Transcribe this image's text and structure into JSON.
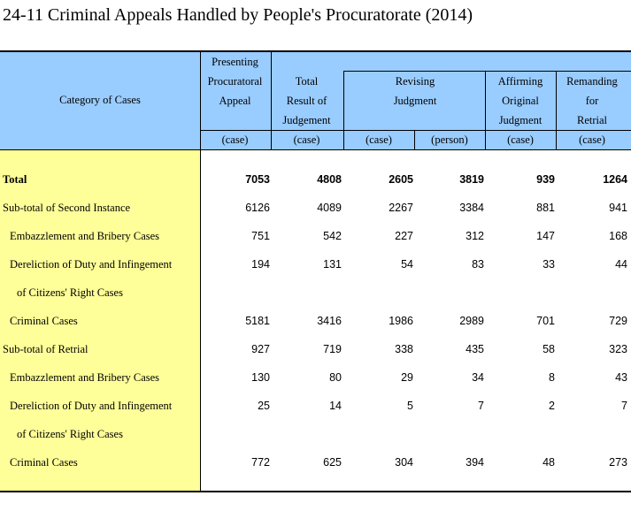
{
  "title": "24-11  Criminal Appeals Handled by People's Procuratorate (2014)",
  "header": {
    "category": "Category of Cases",
    "presenting": [
      "Presenting",
      "Procuratoral",
      "Appeal"
    ],
    "total_result": [
      "Total",
      "Result of",
      "Judgement"
    ],
    "revising": [
      "Revising",
      "Judgment"
    ],
    "affirming": [
      "Affirming",
      "Original",
      "Judgment"
    ],
    "remanding": [
      "Remanding",
      "for",
      "Retrial"
    ],
    "units": [
      "(case)",
      "(case)",
      "(case)",
      "(person)",
      "(case)",
      "(case)"
    ]
  },
  "rows": [
    {
      "label": "Total",
      "values": [
        "7053",
        "4808",
        "2605",
        "3819",
        "939",
        "1264"
      ]
    },
    {
      "label": "Sub-total of Second Instance",
      "values": [
        "6126",
        "4089",
        "2267",
        "3384",
        "881",
        "941"
      ]
    },
    {
      "label": "Embazzlement and Bribery Cases",
      "values": [
        "751",
        "542",
        "227",
        "312",
        "147",
        "168"
      ]
    },
    {
      "label": "Dereliction of Duty and Infingement",
      "values": [
        "194",
        "131",
        "54",
        "83",
        "33",
        "44"
      ]
    },
    {
      "label": "of Citizens' Right Cases",
      "values": [
        "",
        "",
        "",
        "",
        "",
        ""
      ]
    },
    {
      "label": "Criminal Cases",
      "values": [
        "5181",
        "3416",
        "1986",
        "2989",
        "701",
        "729"
      ]
    },
    {
      "label": "Sub-total of Retrial",
      "values": [
        "927",
        "719",
        "338",
        "435",
        "58",
        "323"
      ]
    },
    {
      "label": "Embazzlement and Bribery Cases",
      "values": [
        "130",
        "80",
        "29",
        "34",
        "8",
        "43"
      ]
    },
    {
      "label": "Dereliction of Duty and Infingement",
      "values": [
        "25",
        "14",
        "5",
        "7",
        "2",
        "7"
      ]
    },
    {
      "label": "of Citizens' Right Cases",
      "values": [
        "",
        "",
        "",
        "",
        "",
        ""
      ]
    },
    {
      "label": "Criminal Cases",
      "values": [
        "772",
        "625",
        "304",
        "394",
        "48",
        "273"
      ]
    }
  ]
}
